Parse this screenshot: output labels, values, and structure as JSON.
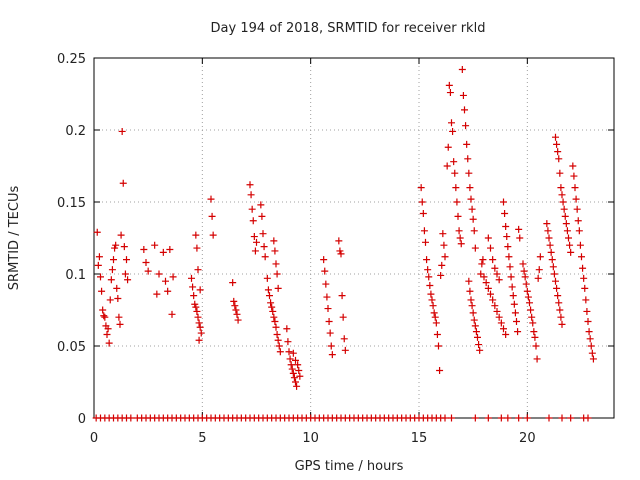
{
  "chart_data": {
    "type": "scatter",
    "title": "Day 194 of 2018, SRMTID for receiver rkld",
    "xlabel": "GPS time / hours",
    "ylabel": "SRMTID / TECUs",
    "xlim": [
      0,
      24
    ],
    "ylim": [
      0,
      0.25
    ],
    "grid": true,
    "marker": "+",
    "color": "#d40000",
    "x_ticks": [
      0,
      5,
      10,
      15,
      20
    ],
    "x_tick_labels": [
      "0",
      "5",
      "10",
      "15",
      "20"
    ],
    "y_ticks": [
      0,
      0.05,
      0.1,
      0.15,
      0.2,
      0.25
    ],
    "y_tick_labels": [
      "0",
      "0.05",
      "0.1",
      "0.15",
      "0.2",
      "0.25"
    ],
    "series": [
      {
        "name": "SRMTID",
        "points": [
          [
            0.15,
            0.129
          ],
          [
            0.2,
            0.106
          ],
          [
            0.25,
            0.112
          ],
          [
            0.3,
            0.098
          ],
          [
            0.35,
            0.088
          ],
          [
            0.4,
            0.075
          ],
          [
            0.45,
            0.071
          ],
          [
            0.5,
            0.07
          ],
          [
            0.55,
            0.064
          ],
          [
            0.6,
            0.058
          ],
          [
            0.65,
            0.062
          ],
          [
            0.7,
            0.052
          ],
          [
            0.75,
            0.082
          ],
          [
            0.8,
            0.096
          ],
          [
            0.85,
            0.103
          ],
          [
            0.9,
            0.11
          ],
          [
            0.95,
            0.118
          ],
          [
            1.0,
            0.12
          ],
          [
            1.05,
            0.09
          ],
          [
            1.1,
            0.083
          ],
          [
            1.15,
            0.07
          ],
          [
            1.2,
            0.065
          ],
          [
            1.25,
            0.127
          ],
          [
            1.3,
            0.199
          ],
          [
            1.35,
            0.163
          ],
          [
            1.4,
            0.119
          ],
          [
            1.45,
            0.1
          ],
          [
            1.5,
            0.11
          ],
          [
            1.55,
            0.096
          ],
          [
            2.3,
            0.117
          ],
          [
            2.4,
            0.108
          ],
          [
            2.5,
            0.102
          ],
          [
            2.8,
            0.12
          ],
          [
            2.9,
            0.086
          ],
          [
            3.0,
            0.1
          ],
          [
            3.2,
            0.115
          ],
          [
            3.3,
            0.095
          ],
          [
            3.4,
            0.088
          ],
          [
            3.5,
            0.117
          ],
          [
            3.6,
            0.072
          ],
          [
            3.65,
            0.098
          ],
          [
            4.5,
            0.097
          ],
          [
            4.55,
            0.091
          ],
          [
            4.6,
            0.085
          ],
          [
            4.65,
            0.079
          ],
          [
            4.7,
            0.077
          ],
          [
            4.75,
            0.074
          ],
          [
            4.8,
            0.07
          ],
          [
            4.85,
            0.066
          ],
          [
            4.9,
            0.063
          ],
          [
            4.95,
            0.059
          ],
          [
            4.7,
            0.127
          ],
          [
            4.75,
            0.118
          ],
          [
            4.8,
            0.103
          ],
          [
            4.85,
            0.054
          ],
          [
            4.9,
            0.089
          ],
          [
            5.4,
            0.152
          ],
          [
            5.45,
            0.14
          ],
          [
            5.5,
            0.127
          ],
          [
            6.4,
            0.094
          ],
          [
            6.45,
            0.081
          ],
          [
            6.5,
            0.078
          ],
          [
            6.55,
            0.075
          ],
          [
            6.6,
            0.072
          ],
          [
            6.65,
            0.068
          ],
          [
            7.2,
            0.162
          ],
          [
            7.25,
            0.155
          ],
          [
            7.3,
            0.145
          ],
          [
            7.35,
            0.137
          ],
          [
            7.4,
            0.126
          ],
          [
            7.45,
            0.116
          ],
          [
            7.5,
            0.122
          ],
          [
            7.7,
            0.148
          ],
          [
            7.75,
            0.14
          ],
          [
            7.8,
            0.128
          ],
          [
            7.85,
            0.119
          ],
          [
            7.9,
            0.112
          ],
          [
            8.0,
            0.097
          ],
          [
            8.05,
            0.089
          ],
          [
            8.1,
            0.085
          ],
          [
            8.15,
            0.08
          ],
          [
            8.2,
            0.077
          ],
          [
            8.25,
            0.074
          ],
          [
            8.3,
            0.07
          ],
          [
            8.35,
            0.067
          ],
          [
            8.4,
            0.063
          ],
          [
            8.45,
            0.058
          ],
          [
            8.5,
            0.054
          ],
          [
            8.55,
            0.05
          ],
          [
            8.6,
            0.046
          ],
          [
            8.3,
            0.123
          ],
          [
            8.35,
            0.116
          ],
          [
            8.4,
            0.107
          ],
          [
            8.45,
            0.1
          ],
          [
            8.5,
            0.09
          ],
          [
            8.9,
            0.062
          ],
          [
            8.95,
            0.053
          ],
          [
            9.0,
            0.046
          ],
          [
            9.05,
            0.041
          ],
          [
            9.1,
            0.037
          ],
          [
            9.15,
            0.034
          ],
          [
            9.2,
            0.031
          ],
          [
            9.25,
            0.028
          ],
          [
            9.3,
            0.025
          ],
          [
            9.35,
            0.022
          ],
          [
            9.4,
            0.037
          ],
          [
            9.45,
            0.033
          ],
          [
            9.5,
            0.029
          ],
          [
            9.2,
            0.045
          ],
          [
            9.3,
            0.04
          ],
          [
            10.6,
            0.11
          ],
          [
            10.65,
            0.102
          ],
          [
            10.7,
            0.093
          ],
          [
            10.75,
            0.084
          ],
          [
            10.8,
            0.076
          ],
          [
            10.85,
            0.067
          ],
          [
            10.9,
            0.059
          ],
          [
            10.95,
            0.05
          ],
          [
            11.0,
            0.044
          ],
          [
            11.3,
            0.123
          ],
          [
            11.35,
            0.116
          ],
          [
            11.4,
            0.114
          ],
          [
            11.45,
            0.085
          ],
          [
            11.5,
            0.07
          ],
          [
            11.55,
            0.055
          ],
          [
            11.6,
            0.047
          ],
          [
            15.1,
            0.16
          ],
          [
            15.15,
            0.15
          ],
          [
            15.2,
            0.142
          ],
          [
            15.25,
            0.13
          ],
          [
            15.3,
            0.122
          ],
          [
            15.35,
            0.11
          ],
          [
            15.4,
            0.103
          ],
          [
            15.45,
            0.098
          ],
          [
            15.5,
            0.092
          ],
          [
            15.55,
            0.086
          ],
          [
            15.6,
            0.082
          ],
          [
            15.65,
            0.078
          ],
          [
            15.7,
            0.073
          ],
          [
            15.75,
            0.07
          ],
          [
            15.8,
            0.066
          ],
          [
            15.85,
            0.058
          ],
          [
            15.9,
            0.05
          ],
          [
            15.95,
            0.033
          ],
          [
            16.0,
            0.099
          ],
          [
            16.05,
            0.106
          ],
          [
            16.1,
            0.128
          ],
          [
            16.15,
            0.12
          ],
          [
            16.2,
            0.112
          ],
          [
            16.3,
            0.175
          ],
          [
            16.35,
            0.188
          ],
          [
            16.4,
            0.231
          ],
          [
            16.45,
            0.226
          ],
          [
            16.5,
            0.205
          ],
          [
            16.55,
            0.199
          ],
          [
            16.6,
            0.178
          ],
          [
            16.65,
            0.17
          ],
          [
            16.7,
            0.16
          ],
          [
            16.75,
            0.15
          ],
          [
            16.8,
            0.14
          ],
          [
            16.85,
            0.13
          ],
          [
            16.9,
            0.125
          ],
          [
            16.95,
            0.121
          ],
          [
            17.0,
            0.242
          ],
          [
            17.05,
            0.224
          ],
          [
            17.1,
            0.214
          ],
          [
            17.15,
            0.203
          ],
          [
            17.2,
            0.19
          ],
          [
            17.25,
            0.18
          ],
          [
            17.3,
            0.17
          ],
          [
            17.35,
            0.16
          ],
          [
            17.4,
            0.152
          ],
          [
            17.45,
            0.145
          ],
          [
            17.5,
            0.138
          ],
          [
            17.55,
            0.13
          ],
          [
            17.6,
            0.118
          ],
          [
            17.3,
            0.095
          ],
          [
            17.35,
            0.088
          ],
          [
            17.4,
            0.082
          ],
          [
            17.45,
            0.078
          ],
          [
            17.5,
            0.073
          ],
          [
            17.55,
            0.068
          ],
          [
            17.6,
            0.064
          ],
          [
            17.65,
            0.06
          ],
          [
            17.7,
            0.056
          ],
          [
            17.75,
            0.051
          ],
          [
            17.8,
            0.047
          ],
          [
            17.85,
            0.1
          ],
          [
            17.9,
            0.107
          ],
          [
            17.95,
            0.11
          ],
          [
            18.0,
            0.098
          ],
          [
            18.1,
            0.094
          ],
          [
            18.2,
            0.09
          ],
          [
            18.3,
            0.086
          ],
          [
            18.4,
            0.082
          ],
          [
            18.5,
            0.078
          ],
          [
            18.6,
            0.074
          ],
          [
            18.7,
            0.07
          ],
          [
            18.8,
            0.066
          ],
          [
            18.9,
            0.062
          ],
          [
            19.0,
            0.058
          ],
          [
            18.2,
            0.125
          ],
          [
            18.3,
            0.118
          ],
          [
            18.4,
            0.11
          ],
          [
            18.5,
            0.104
          ],
          [
            18.6,
            0.1
          ],
          [
            18.7,
            0.096
          ],
          [
            18.9,
            0.15
          ],
          [
            18.95,
            0.142
          ],
          [
            19.0,
            0.133
          ],
          [
            19.05,
            0.126
          ],
          [
            19.1,
            0.119
          ],
          [
            19.15,
            0.112
          ],
          [
            19.2,
            0.105
          ],
          [
            19.25,
            0.098
          ],
          [
            19.3,
            0.091
          ],
          [
            19.35,
            0.085
          ],
          [
            19.4,
            0.079
          ],
          [
            19.45,
            0.073
          ],
          [
            19.5,
            0.067
          ],
          [
            19.55,
            0.06
          ],
          [
            19.6,
            0.131
          ],
          [
            19.65,
            0.125
          ],
          [
            19.8,
            0.107
          ],
          [
            19.85,
            0.102
          ],
          [
            19.9,
            0.098
          ],
          [
            19.95,
            0.093
          ],
          [
            20.0,
            0.088
          ],
          [
            20.05,
            0.084
          ],
          [
            20.1,
            0.08
          ],
          [
            20.15,
            0.075
          ],
          [
            20.2,
            0.07
          ],
          [
            20.25,
            0.066
          ],
          [
            20.3,
            0.06
          ],
          [
            20.35,
            0.056
          ],
          [
            20.4,
            0.05
          ],
          [
            20.45,
            0.041
          ],
          [
            20.5,
            0.097
          ],
          [
            20.55,
            0.103
          ],
          [
            20.6,
            0.112
          ],
          [
            20.9,
            0.135
          ],
          [
            20.95,
            0.13
          ],
          [
            21.0,
            0.125
          ],
          [
            21.05,
            0.12
          ],
          [
            21.1,
            0.115
          ],
          [
            21.15,
            0.11
          ],
          [
            21.2,
            0.105
          ],
          [
            21.25,
            0.1
          ],
          [
            21.3,
            0.095
          ],
          [
            21.35,
            0.09
          ],
          [
            21.4,
            0.085
          ],
          [
            21.45,
            0.08
          ],
          [
            21.5,
            0.075
          ],
          [
            21.55,
            0.07
          ],
          [
            21.6,
            0.065
          ],
          [
            21.3,
            0.195
          ],
          [
            21.35,
            0.19
          ],
          [
            21.4,
            0.185
          ],
          [
            21.45,
            0.18
          ],
          [
            21.5,
            0.17
          ],
          [
            21.55,
            0.16
          ],
          [
            21.6,
            0.155
          ],
          [
            21.65,
            0.15
          ],
          [
            21.7,
            0.145
          ],
          [
            21.75,
            0.14
          ],
          [
            21.8,
            0.135
          ],
          [
            21.85,
            0.13
          ],
          [
            21.9,
            0.125
          ],
          [
            21.95,
            0.12
          ],
          [
            22.0,
            0.115
          ],
          [
            22.1,
            0.175
          ],
          [
            22.15,
            0.168
          ],
          [
            22.2,
            0.16
          ],
          [
            22.25,
            0.152
          ],
          [
            22.3,
            0.145
          ],
          [
            22.35,
            0.137
          ],
          [
            22.4,
            0.13
          ],
          [
            22.45,
            0.12
          ],
          [
            22.5,
            0.112
          ],
          [
            22.55,
            0.104
          ],
          [
            22.6,
            0.097
          ],
          [
            22.65,
            0.09
          ],
          [
            22.7,
            0.082
          ],
          [
            22.75,
            0.074
          ],
          [
            22.8,
            0.067
          ],
          [
            22.85,
            0.06
          ],
          [
            22.9,
            0.055
          ],
          [
            22.95,
            0.05
          ],
          [
            23.0,
            0.045
          ],
          [
            23.05,
            0.041
          ]
        ]
      }
    ],
    "zero_points_x": [
      0.1,
      0.3,
      0.5,
      0.7,
      0.9,
      1.1,
      1.3,
      1.5,
      1.7,
      2.0,
      2.2,
      2.4,
      2.6,
      2.8,
      3.0,
      3.2,
      3.4,
      3.6,
      3.8,
      4.0,
      4.2,
      4.4,
      4.6,
      4.8,
      5.0,
      5.2,
      5.4,
      5.6,
      5.8,
      6.0,
      6.2,
      6.4,
      6.6,
      6.8,
      7.0,
      7.2,
      7.4,
      7.6,
      7.8,
      8.0,
      8.2,
      8.4,
      8.6,
      8.8,
      9.0,
      9.2,
      9.4,
      9.6,
      9.8,
      10.0,
      10.2,
      10.4,
      10.6,
      10.8,
      11.0,
      11.2,
      11.4,
      11.6,
      11.8,
      12.0,
      12.2,
      12.4,
      12.6,
      12.8,
      13.0,
      13.2,
      13.4,
      13.6,
      13.8,
      14.0,
      14.2,
      14.4,
      14.6,
      14.8,
      15.0,
      15.2,
      15.4,
      15.6,
      15.8,
      16.0,
      16.2,
      16.5,
      17.6,
      18.2,
      18.8,
      19.1,
      19.6,
      20.0,
      21.0,
      21.6,
      22.0,
      22.6,
      22.8
    ]
  }
}
